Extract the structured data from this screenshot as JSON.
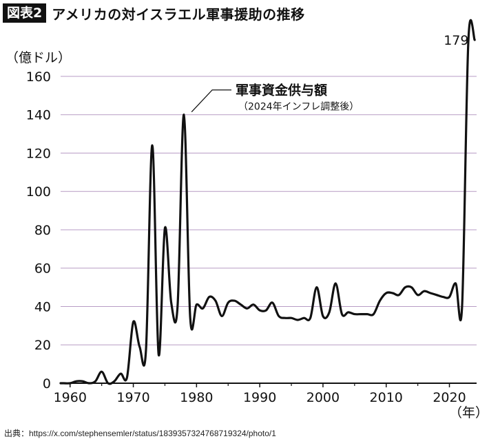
{
  "figure_label": "図表2",
  "title": "アメリカの対イスラエル軍事援助の推移",
  "source": "出典：https://x.com/stephensemler/status/1839357324768719324/photo/1",
  "chart_data": {
    "type": "line",
    "title": "アメリカの対イスラエル軍事援助の推移",
    "ylabel": "（億ドル）",
    "xlabel": "（年）",
    "xlim": [
      1959,
      2024
    ],
    "ylim": [
      0,
      179
    ],
    "yticks": [
      0,
      20,
      40,
      60,
      80,
      100,
      120,
      140,
      160
    ],
    "xticks": [
      1960,
      1970,
      1980,
      1990,
      2000,
      2010,
      2020
    ],
    "grid": "horizontal",
    "series": [
      {
        "name": "軍事資金供与額",
        "subtitle": "（2024年インフレ調整後）",
        "color": "#111111",
        "x": [
          1958.5,
          1959,
          1960,
          1961,
          1962,
          1963,
          1964,
          1965,
          1966,
          1967,
          1968,
          1969,
          1970,
          1971,
          1972,
          1973,
          1974,
          1975,
          1976,
          1977,
          1978,
          1979,
          1980,
          1981,
          1982,
          1983,
          1984,
          1985,
          1986,
          1987,
          1988,
          1989,
          1990,
          1991,
          1992,
          1993,
          1994,
          1995,
          1996,
          1997,
          1998,
          1999,
          2000,
          2001,
          2002,
          2003,
          2004,
          2005,
          2006,
          2007,
          2008,
          2009,
          2010,
          2011,
          2012,
          2013,
          2014,
          2015,
          2016,
          2017,
          2018,
          2019,
          2020,
          2021,
          2022,
          2023,
          2024
        ],
        "values": [
          0,
          0,
          0,
          1,
          1,
          0,
          1,
          6,
          0,
          1,
          5,
          3,
          32,
          19,
          17,
          124,
          15,
          81,
          42,
          40,
          140,
          34,
          41,
          39,
          45,
          43,
          35,
          42,
          43,
          41,
          39,
          41,
          38,
          38,
          42,
          35,
          34,
          34,
          33,
          34,
          34,
          50,
          35,
          37,
          52,
          36,
          37,
          36,
          36,
          36,
          36,
          43,
          47,
          47,
          46,
          50,
          50,
          46,
          48,
          47,
          46,
          45,
          45,
          52,
          40,
          179,
          179
        ],
        "end_label": "179"
      }
    ]
  }
}
